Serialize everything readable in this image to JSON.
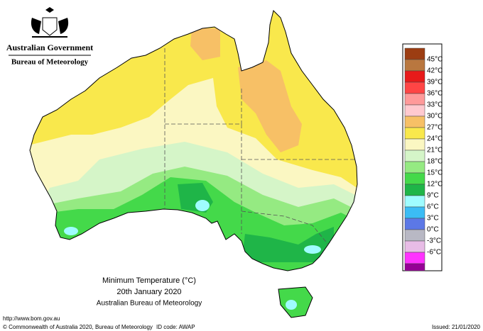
{
  "header": {
    "government": "Australian Government",
    "agency": "Bureau of Meteorology"
  },
  "caption": {
    "title": "Minimum Temperature (°C)",
    "date": "20th January 2020",
    "source": "Australian Bureau of Meteorology"
  },
  "legend": {
    "entries": [
      {
        "label": "45°C",
        "color": "#9c3d12"
      },
      {
        "label": "42°C",
        "color": "#b9773f"
      },
      {
        "label": "39°C",
        "color": "#e81a1a"
      },
      {
        "label": "36°C",
        "color": "#ff4545"
      },
      {
        "label": "33°C",
        "color": "#ff9a9a"
      },
      {
        "label": "30°C",
        "color": "#ffc9cf"
      },
      {
        "label": "27°C",
        "color": "#f7c066"
      },
      {
        "label": "24°C",
        "color": "#f9e84c"
      },
      {
        "label": "21°C",
        "color": "#fbf7c2"
      },
      {
        "label": "18°C",
        "color": "#d5f5c8"
      },
      {
        "label": "15°C",
        "color": "#95ea82"
      },
      {
        "label": "12°C",
        "color": "#44d94a"
      },
      {
        "label": "9°C",
        "color": "#1fb548"
      },
      {
        "label": "6°C",
        "color": "#9ffcff"
      },
      {
        "label": "3°C",
        "color": "#3bbcf5"
      },
      {
        "label": "0°C",
        "color": "#5c78e6"
      },
      {
        "label": "-3°C",
        "color": "#b8b8c4"
      },
      {
        "label": "-6°C",
        "color": "#e8bce6"
      }
    ],
    "last_color": "#ff33ff",
    "end_color": "#960096"
  },
  "footer": {
    "url": "http://www.bom.gov.au",
    "copyright": "© Commonwealth of Australia 2020, Bureau of Meteorology",
    "id_code": "ID code: AWAP",
    "issued": "Issued: 21/01/2020"
  }
}
